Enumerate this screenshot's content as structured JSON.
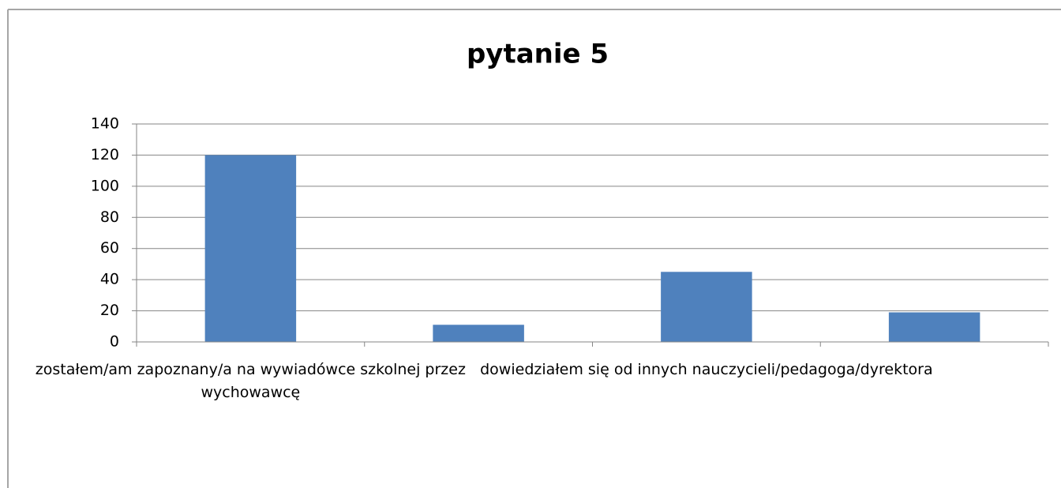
{
  "chart_data": {
    "type": "bar",
    "title": "pytanie 5",
    "categories": [
      "zostałem/am zapoznany/a na wywiadówce szkolnej przez wychowawcę",
      null,
      "dowiedziałem się od innych nauczycieli/pedagoga/dyrektora",
      null
    ],
    "values": [
      120,
      11,
      45,
      19
    ],
    "color": "#4f81bd",
    "ylim": [
      0,
      140
    ],
    "yticks": [
      0,
      20,
      40,
      60,
      80,
      100,
      120,
      140
    ],
    "grid": true
  }
}
